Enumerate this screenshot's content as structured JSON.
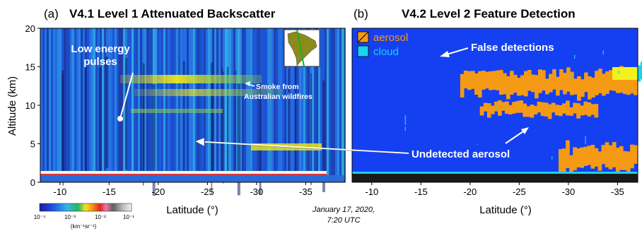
{
  "panels": {
    "a": {
      "letter": "(a)",
      "title": "V4.1 Level 1 Attenuated Backscatter",
      "ylabel": "Altitude (km)",
      "yticks": [
        "20",
        "15",
        "10",
        "5",
        "0"
      ],
      "xticks": [
        "-10",
        "-15",
        "-20",
        "-25",
        "-30",
        "-35"
      ],
      "xlabel": "Latitude (°)",
      "annotations": {
        "low_energy": [
          "Low energy",
          "pulses"
        ],
        "smoke": [
          "Smoke from",
          "Australian wildfires"
        ]
      }
    },
    "b": {
      "letter": "(b)",
      "title": "V4.2 Level 2 Feature Detection",
      "xticks": [
        "-10",
        "-15",
        "-20",
        "-25",
        "-30",
        "-35"
      ],
      "xlabel": "Latitude (°)",
      "legend": {
        "aerosol": "aerosol",
        "cloud": "cloud"
      },
      "annotations": {
        "false_detections": "False detections",
        "undetected": "Undetected aerosol"
      }
    }
  },
  "date": [
    "January 17, 2020,",
    "7:20 UTC"
  ],
  "colorbar": {
    "ticks": [
      "10⁻⁴",
      "10⁻³",
      "10⁻²",
      "10⁻¹"
    ],
    "unit": "(km⁻¹sr⁻¹)"
  },
  "colors": {
    "aerosol": "#f59a14",
    "cloud": "#19d3f0",
    "clear_air": "#1540f2",
    "surface": "#1a1a1a"
  },
  "chart_data": [
    {
      "type": "heatmap",
      "title": "V4.1 Level 1 Attenuated Backscatter",
      "ylabel": "Altitude (km)",
      "xlabel": "Latitude (°)",
      "xlim": [
        -8,
        -39
      ],
      "ylim": [
        0,
        20
      ],
      "xticks": [
        -10,
        -15,
        -20,
        -25,
        -30,
        -35
      ],
      "yticks": [
        0,
        5,
        10,
        15,
        20
      ],
      "features": [
        {
          "name": "Smoke layer",
          "lat": [
            -19,
            -33
          ],
          "alt": [
            12.5,
            13.7
          ]
        },
        {
          "name": "Smoke layer",
          "lat": [
            -20,
            -34
          ],
          "alt": [
            10.5,
            12.0
          ]
        },
        {
          "name": "Smoke layer",
          "lat": [
            -23,
            -36
          ],
          "alt": [
            4.0,
            5.0
          ]
        },
        {
          "name": "Surface return",
          "lat": [
            -10,
            -38
          ],
          "alt": [
            0.8,
            1.2
          ]
        }
      ]
    },
    {
      "type": "heatmap",
      "title": "V4.2 Level 2 Feature Detection",
      "xlabel": "Latitude (°)",
      "xlim": [
        -8,
        -39
      ],
      "ylim": [
        0,
        20
      ],
      "xticks": [
        -10,
        -15,
        -20,
        -25,
        -30,
        -35
      ],
      "series": [
        {
          "name": "aerosol",
          "regions": [
            {
              "lat": [
                -19,
                -37
              ],
              "alt": [
                11.0,
                14.5
              ]
            },
            {
              "lat": [
                -21,
                -33
              ],
              "alt": [
                8.5,
                10.5
              ]
            },
            {
              "lat": [
                -29,
                -37
              ],
              "alt": [
                1.0,
                5.0
              ]
            }
          ]
        },
        {
          "name": "cloud",
          "regions": [
            {
              "lat": [
                -37,
                -39
              ],
              "alt": [
                13.0,
                15.5
              ]
            }
          ]
        }
      ]
    }
  ]
}
